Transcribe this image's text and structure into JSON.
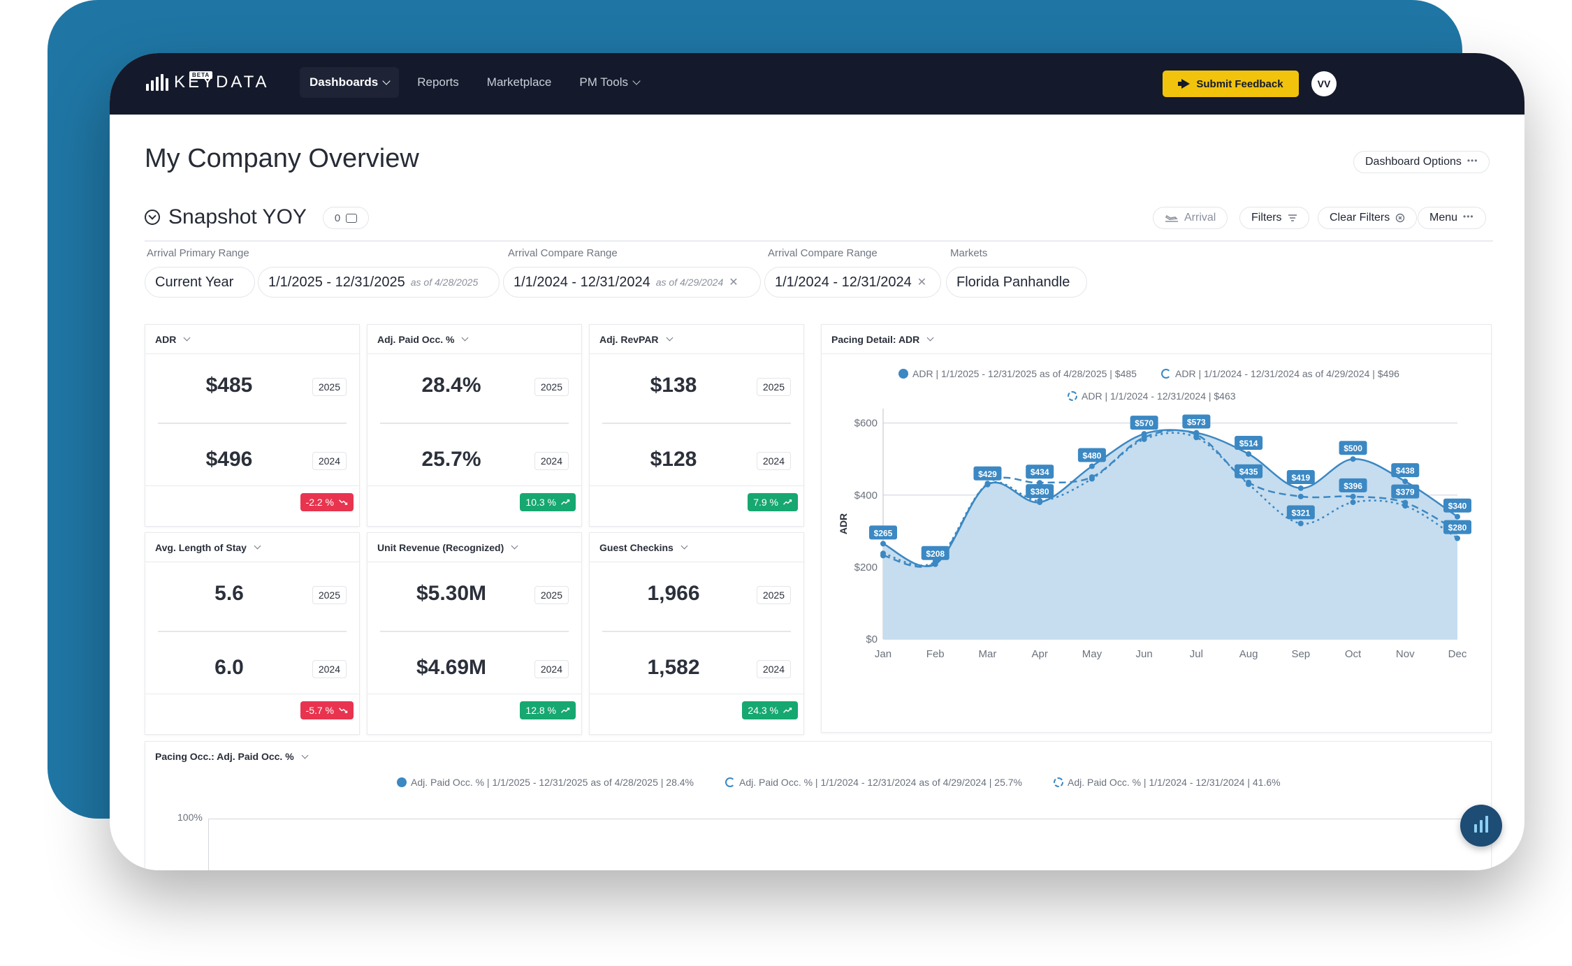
{
  "brand": {
    "name": "KEYDATA",
    "badge": "BETA",
    "accent": "#f2c30d",
    "nav_bg": "#141a2b",
    "chart_blue": "#3b88c3"
  },
  "nav": {
    "items": [
      {
        "label": "Dashboards",
        "has_menu": true,
        "active": true
      },
      {
        "label": "Reports",
        "has_menu": false
      },
      {
        "label": "Marketplace",
        "has_menu": false
      },
      {
        "label": "PM Tools",
        "has_menu": true
      }
    ],
    "feedback_label": "Submit Feedback",
    "user_initials": "VV"
  },
  "page": {
    "title": "My Company Overview",
    "options_label": "Dashboard Options"
  },
  "section": {
    "title": "Snapshot YOY",
    "comment_count": "0",
    "arrival_label": "Arrival",
    "filters_label": "Filters",
    "clear_filters_label": "Clear Filters",
    "menu_label": "Menu"
  },
  "filters": {
    "primary_label": "Arrival Primary Range",
    "primary_preset": "Current Year",
    "primary_range": "1/1/2025 - 12/31/2025",
    "primary_asof": "as of 4/28/2025",
    "compare1_label": "Arrival Compare Range",
    "compare1_range": "1/1/2024 - 12/31/2024",
    "compare1_asof": "as of 4/29/2024",
    "compare2_label": "Arrival Compare Range",
    "compare2_range": "1/1/2024 - 12/31/2024",
    "markets_label": "Markets",
    "markets_value": "Florida Panhandle"
  },
  "kpis": [
    {
      "title": "ADR",
      "current": "$485",
      "current_year": "2025",
      "prior": "$496",
      "prior_year": "2024",
      "delta": "-2.2 %",
      "trend": "down"
    },
    {
      "title": "Adj. Paid Occ. %",
      "current": "28.4%",
      "current_year": "2025",
      "prior": "25.7%",
      "prior_year": "2024",
      "delta": "10.3 %",
      "trend": "up"
    },
    {
      "title": "Adj. RevPAR",
      "current": "$138",
      "current_year": "2025",
      "prior": "$128",
      "prior_year": "2024",
      "delta": "7.9 %",
      "trend": "up"
    },
    {
      "title": "Avg. Length of Stay",
      "current": "5.6",
      "current_year": "2025",
      "prior": "6.0",
      "prior_year": "2024",
      "delta": "-5.7 %",
      "trend": "down"
    },
    {
      "title": "Unit Revenue (Recognized)",
      "current": "$5.30M",
      "current_year": "2025",
      "prior": "$4.69M",
      "prior_year": "2024",
      "delta": "12.8 %",
      "trend": "up"
    },
    {
      "title": "Guest Checkins",
      "current": "1,966",
      "current_year": "2025",
      "prior": "1,582",
      "prior_year": "2024",
      "delta": "24.3 %",
      "trend": "up"
    }
  ],
  "pacing_adr": {
    "title": "Pacing Detail: ADR",
    "legend": [
      "ADR | 1/1/2025 - 12/31/2025 as of 4/28/2025 | $485",
      "ADR | 1/1/2024 - 12/31/2024 as of 4/29/2024 | $496",
      "ADR | 1/1/2024 - 12/31/2024 | $463"
    ]
  },
  "pacing_occ": {
    "title": "Pacing Occ.: Adj. Paid Occ. %",
    "legend": [
      "Adj. Paid Occ. % | 1/1/2025 - 12/31/2025 as of 4/28/2025 | 28.4%",
      "Adj. Paid Occ. % | 1/1/2024 - 12/31/2024 as of 4/29/2024 | 25.7%",
      "Adj. Paid Occ. % | 1/1/2024 - 12/31/2024 | 41.6%"
    ],
    "ytick_top": "100%"
  },
  "chart_data": {
    "type": "area",
    "ylabel": "ADR",
    "categories": [
      "Jan",
      "Feb",
      "Mar",
      "Apr",
      "May",
      "Jun",
      "Jul",
      "Aug",
      "Sep",
      "Oct",
      "Nov",
      "Dec"
    ],
    "ylim": [
      0,
      640
    ],
    "yticks": [
      0,
      200,
      400,
      600
    ],
    "ytick_labels": [
      "$0",
      "$200",
      "$400",
      "$600"
    ],
    "grid": true,
    "series": [
      {
        "name": "ADR | 1/1/2025 - 12/31/2025 as of 4/28/2025 | $485",
        "style": "area",
        "values": [
          265,
          208,
          429,
          380,
          480,
          570,
          573,
          514,
          419,
          500,
          438,
          340
        ]
      },
      {
        "name": "ADR | 1/1/2024 - 12/31/2024 as of 4/29/2024 | $496",
        "style": "dashed",
        "values": [
          232,
          212,
          432,
          434,
          450,
          560,
          568,
          435,
          396,
          396,
          379,
          300
        ]
      },
      {
        "name": "ADR | 1/1/2024 - 12/31/2024 | $463",
        "style": "dotted",
        "values": [
          238,
          215,
          430,
          384,
          445,
          555,
          560,
          430,
          321,
          380,
          370,
          280
        ]
      }
    ],
    "data_labels": [
      {
        "x": "Jan",
        "text": "$265"
      },
      {
        "x": "Feb",
        "text": "$208"
      },
      {
        "x": "Mar",
        "text": "$429"
      },
      {
        "x": "Apr",
        "text": "$434"
      },
      {
        "x": "Apr",
        "text": "$380"
      },
      {
        "x": "May",
        "text": "$480"
      },
      {
        "x": "Jun",
        "text": "$570"
      },
      {
        "x": "Jul",
        "text": "$573"
      },
      {
        "x": "Aug",
        "text": "$514"
      },
      {
        "x": "Aug",
        "text": "$435"
      },
      {
        "x": "Sep",
        "text": "$419"
      },
      {
        "x": "Sep",
        "text": "$321"
      },
      {
        "x": "Oct",
        "text": "$500"
      },
      {
        "x": "Oct",
        "text": "$396"
      },
      {
        "x": "Nov",
        "text": "$438"
      },
      {
        "x": "Nov",
        "text": "$379"
      },
      {
        "x": "Dec",
        "text": "$340"
      },
      {
        "x": "Dec",
        "text": "$280"
      }
    ]
  }
}
